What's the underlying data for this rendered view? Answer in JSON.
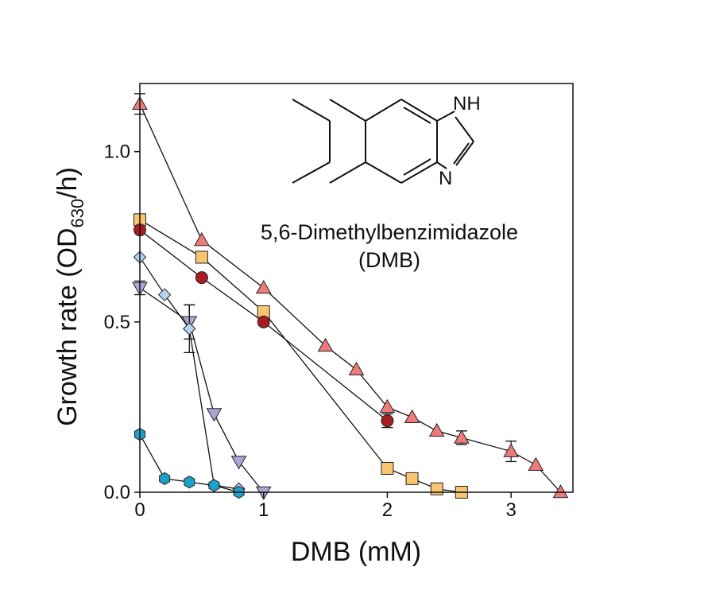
{
  "chart_data": {
    "type": "line",
    "title": "",
    "xlabel": "DMB (mM)",
    "ylabel": {
      "main": "Growth rate (OD",
      "sub": "630",
      "tail": "/h)"
    },
    "xlim": [
      0,
      3.5
    ],
    "ylim": [
      0,
      1.2
    ],
    "xticks": [
      0,
      1,
      2,
      3
    ],
    "yticks": [
      0.0,
      0.5,
      1.0
    ],
    "xtick_labels": [
      "0",
      "1",
      "2",
      "3"
    ],
    "ytick_labels": [
      "0.0",
      "0.5",
      "1.0"
    ],
    "grid": false,
    "legend": "none",
    "annotations": {
      "compound_name": "5,6-Dimethylbenzimidazole",
      "compound_abbrev": "(DMB)",
      "nh_label": "NH",
      "n_label": "N"
    },
    "series": [
      {
        "marker": "triangle-up",
        "color": "#ee7b7b",
        "x": [
          0,
          0.5,
          1.0,
          1.5,
          1.75,
          2.0,
          2.2,
          2.4,
          2.6,
          3.0,
          3.2,
          3.4
        ],
        "y": [
          1.14,
          0.74,
          0.6,
          0.43,
          0.36,
          0.25,
          0.22,
          0.18,
          0.16,
          0.12,
          0.08,
          0.0
        ],
        "err": [
          0.03,
          0,
          0,
          0,
          0,
          0,
          0,
          0,
          0.02,
          0.03,
          0,
          0
        ]
      },
      {
        "marker": "square",
        "color": "#fac571",
        "x": [
          0,
          0.5,
          1.0,
          2.0,
          2.2,
          2.4,
          2.6
        ],
        "y": [
          0.8,
          0.69,
          0.53,
          0.07,
          0.04,
          0.01,
          0.0
        ],
        "err": [
          0,
          0,
          0,
          0,
          0,
          0,
          0
        ]
      },
      {
        "marker": "circle",
        "color": "#a81c22",
        "x": [
          0,
          0.5,
          1.0,
          2.0
        ],
        "y": [
          0.77,
          0.63,
          0.5,
          0.21
        ],
        "err": [
          0,
          0,
          0,
          0.02
        ]
      },
      {
        "marker": "triangle-down",
        "color": "#a9a6d6",
        "x": [
          0,
          0.4,
          0.6,
          0.8,
          1.0
        ],
        "y": [
          0.6,
          0.5,
          0.23,
          0.09,
          0.0
        ],
        "err": [
          0.02,
          0.05,
          0,
          0,
          0
        ]
      },
      {
        "marker": "diamond",
        "color": "#b4d4f2",
        "x": [
          0,
          0.2,
          0.4,
          0.6,
          0.8
        ],
        "y": [
          0.69,
          0.58,
          0.48,
          0.02,
          0.01
        ],
        "err": [
          0,
          0,
          0.07,
          0,
          0
        ]
      },
      {
        "marker": "hexagon",
        "color": "#1b9fcb",
        "x": [
          0,
          0.2,
          0.4,
          0.6,
          0.8
        ],
        "y": [
          0.17,
          0.04,
          0.03,
          0.02,
          0.0
        ],
        "err": [
          0,
          0,
          0,
          0,
          0
        ]
      }
    ]
  }
}
